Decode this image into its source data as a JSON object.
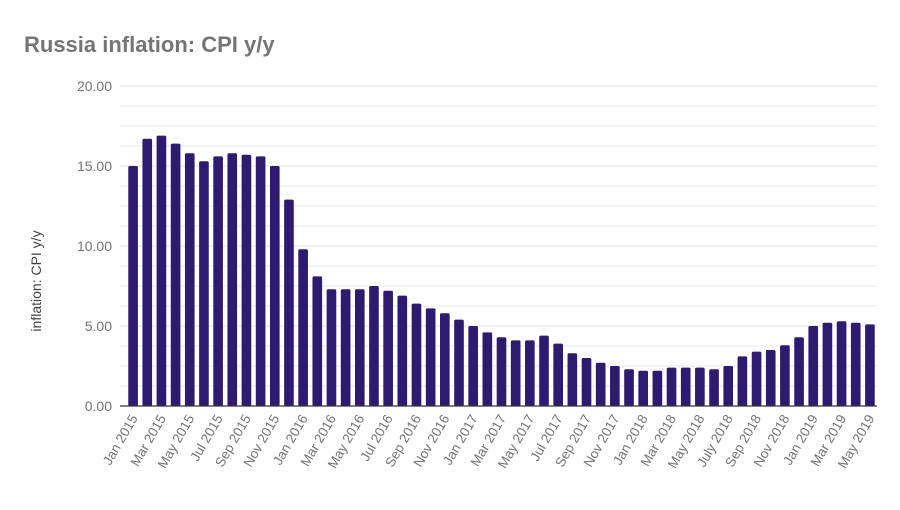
{
  "chart_data": {
    "type": "bar",
    "title": "Russia inflation: CPI y/y",
    "xlabel": "",
    "ylabel": "inflation: CPI y/y",
    "ylim": [
      0,
      20
    ],
    "yticks": [
      "0.00",
      "5.00",
      "10.00",
      "15.00",
      "20.00"
    ],
    "grid": true,
    "bar_color": "#2e1a6e",
    "grid_color": "#e0e0e0",
    "axis_color": "#333333",
    "text_color": "#757575",
    "categories": [
      "Jan 2015",
      "Feb 2015",
      "Mar 2015",
      "Apr 2015",
      "May 2015",
      "Jun 2015",
      "Jul 2015",
      "Aug 2015",
      "Sep 2015",
      "Oct 2015",
      "Nov 2015",
      "Dec 2015",
      "Jan 2016",
      "Feb 2016",
      "Mar 2016",
      "Apr 2016",
      "May 2016",
      "Jun 2016",
      "Jul 2016",
      "Aug 2016",
      "Sep 2016",
      "Oct 2016",
      "Nov 2016",
      "Dec 2016",
      "Jan 2017",
      "Feb 2017",
      "Mar 2017",
      "Apr 2017",
      "May 2017",
      "Jun 2017",
      "Jul 2017",
      "Aug 2017",
      "Sep 2017",
      "Oct 2017",
      "Nov 2017",
      "Dec 2017",
      "Jan 2018",
      "Feb 2018",
      "Mar 2018",
      "Apr 2018",
      "May 2018",
      "Jun 2018",
      "July 2018",
      "Aug 2018",
      "Sep 2018",
      "Oct 2018",
      "Nov 2018",
      "Dec 2018",
      "Jan 2019",
      "Feb 2019",
      "Mar 2019",
      "Apr 2019",
      "May 2019"
    ],
    "visible_tick_labels": [
      "Jan 2015",
      "Mar 2015",
      "May 2015",
      "Jul 2015",
      "Sep 2015",
      "Nov 2015",
      "Jan 2016",
      "Mar 2016",
      "May 2016",
      "Jul 2016",
      "Sep 2016",
      "Nov 2016",
      "Jan 2017",
      "Mar 2017",
      "May 2017",
      "Jul 2017",
      "Sep 2017",
      "Nov 2017",
      "Jan 2018",
      "Mar 2018",
      "May 2018",
      "July 2018",
      "Sep 2018",
      "Nov 2018",
      "Jan 2019",
      "Mar 2019",
      "May 2019"
    ],
    "values": [
      15.0,
      16.7,
      16.9,
      16.4,
      15.8,
      15.3,
      15.6,
      15.8,
      15.7,
      15.6,
      15.0,
      12.9,
      9.8,
      8.1,
      7.3,
      7.3,
      7.3,
      7.5,
      7.2,
      6.9,
      6.4,
      6.1,
      5.8,
      5.4,
      5.0,
      4.6,
      4.3,
      4.1,
      4.1,
      4.4,
      3.9,
      3.3,
      3.0,
      2.7,
      2.5,
      2.3,
      2.2,
      2.2,
      2.4,
      2.4,
      2.4,
      2.3,
      2.5,
      3.1,
      3.4,
      3.5,
      3.8,
      4.3,
      5.0,
      5.2,
      5.3,
      5.2,
      5.1
    ]
  }
}
